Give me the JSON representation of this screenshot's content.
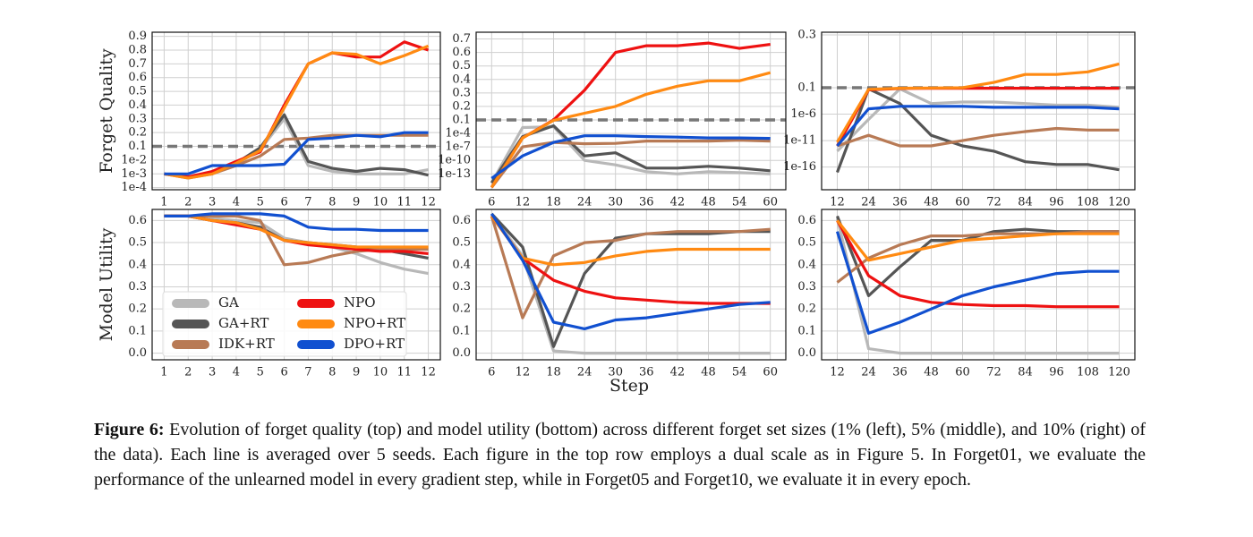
{
  "chart_data": [
    {
      "type": "line",
      "ylabel": "Forget Quality",
      "yscale": {
        "type": "dual",
        "split": 0.1,
        "linear_per_unit": 0.1,
        "decades_per_unit": 1
      },
      "x": [
        1,
        2,
        3,
        4,
        5,
        6,
        7,
        8,
        9,
        10,
        11,
        12
      ],
      "xlim": [
        0.5,
        12.5
      ],
      "xticks": [
        1,
        2,
        3,
        4,
        5,
        6,
        7,
        8,
        9,
        10,
        11,
        12
      ],
      "ylim": [
        7e-05,
        0.93
      ],
      "yticks": [
        {
          "value": 0.0001,
          "label": "1e-4"
        },
        {
          "value": 0.001,
          "label": "1e-3"
        },
        {
          "value": 0.01,
          "label": "1e-2"
        },
        0.1,
        0.2,
        0.3,
        0.4,
        0.5,
        0.6,
        0.7,
        0.8,
        0.9
      ],
      "grid": true,
      "series": [
        {
          "color": "#b8b8b8",
          "values": [
            0.001,
            0.0006,
            0.001,
            0.005,
            0.06,
            0.3,
            0.004,
            0.0015,
            0.001,
            0.001,
            0.001,
            0.002
          ]
        },
        {
          "color": "#555555",
          "values": [
            0.001,
            0.0006,
            0.001,
            0.006,
            0.08,
            0.33,
            0.008,
            0.0025,
            0.0015,
            0.0025,
            0.002,
            0.0008
          ]
        },
        {
          "color": "#b87a55",
          "values": [
            0.001,
            0.0005,
            0.001,
            0.004,
            0.02,
            0.15,
            0.16,
            0.18,
            0.18,
            0.18,
            0.18,
            0.18
          ]
        },
        {
          "color": "#ee1111",
          "values": [
            0.001,
            0.0006,
            0.0015,
            0.008,
            0.04,
            0.4,
            0.7,
            0.78,
            0.75,
            0.75,
            0.86,
            0.8
          ]
        },
        {
          "color": "#ff8a12",
          "values": [
            0.001,
            0.0005,
            0.001,
            0.006,
            0.05,
            0.38,
            0.7,
            0.78,
            0.77,
            0.7,
            0.76,
            0.83
          ]
        },
        {
          "color": "#1150d0",
          "values": [
            0.001,
            0.001,
            0.004,
            0.004,
            0.004,
            0.005,
            0.15,
            0.16,
            0.18,
            0.17,
            0.2,
            0.2
          ]
        }
      ]
    },
    {
      "type": "line",
      "yscale": {
        "type": "dual",
        "split": 0.1,
        "linear_per_unit": 0.1,
        "decades_per_unit": 3
      },
      "x": [
        6,
        12,
        18,
        24,
        30,
        36,
        42,
        48,
        54,
        60
      ],
      "xlim": [
        3,
        63
      ],
      "xticks": [
        6,
        12,
        18,
        24,
        30,
        36,
        42,
        48,
        54,
        60
      ],
      "ylim": [
        3e-17,
        0.75
      ],
      "yticks": [
        {
          "value": 1e-13,
          "label": "1e-13"
        },
        {
          "value": 1e-10,
          "label": "1e-10"
        },
        {
          "value": 1e-07,
          "label": "1e-7"
        },
        {
          "value": 0.0001,
          "label": "1e-4"
        },
        0.1,
        0.2,
        0.3,
        0.4,
        0.5,
        0.6,
        0.7
      ],
      "grid": true,
      "series": [
        {
          "color": "#b8b8b8",
          "values": [
            1e-15,
            0.002,
            0.003,
            1e-10,
            1e-11,
            3e-13,
            1e-13,
            3e-13,
            2e-13,
            1e-13
          ]
        },
        {
          "color": "#555555",
          "values": [
            1e-15,
            2e-05,
            0.005,
            1e-09,
            5e-09,
            2e-12,
            2e-12,
            5e-12,
            2e-12,
            5e-13
          ]
        },
        {
          "color": "#b87a55",
          "values": [
            1e-16,
            1e-07,
            1e-06,
            5e-07,
            6e-07,
            2e-06,
            2e-06,
            2e-06,
            3e-06,
            2e-06
          ]
        },
        {
          "color": "#ee1111",
          "values": [
            1e-16,
            1e-05,
            0.1,
            0.32,
            0.6,
            0.65,
            0.65,
            0.67,
            0.63,
            0.66
          ]
        },
        {
          "color": "#ff8a12",
          "values": [
            1e-16,
            1e-05,
            0.08,
            0.15,
            0.2,
            0.29,
            0.35,
            0.39,
            0.39,
            0.45
          ]
        },
        {
          "color": "#1150d0",
          "values": [
            1e-14,
            1e-09,
            1e-06,
            3e-05,
            3e-05,
            2e-05,
            1.5e-05,
            1e-05,
            1e-05,
            8e-06
          ]
        }
      ]
    },
    {
      "type": "line",
      "yscale": {
        "type": "dual",
        "split": 0.1,
        "linear_per_unit": 0.1,
        "decades_per_unit": 5
      },
      "x": [
        12,
        24,
        36,
        48,
        60,
        72,
        84,
        96,
        108,
        120
      ],
      "xlim": [
        6,
        126
      ],
      "xticks": [
        12,
        24,
        36,
        48,
        60,
        72,
        84,
        96,
        108,
        120
      ],
      "ylim": [
        5e-21,
        0.31
      ],
      "yticks": [
        {
          "value": 1e-16,
          "label": "1e-16"
        },
        {
          "value": 1e-11,
          "label": "1e-11"
        },
        {
          "value": 1e-06,
          "label": "1e-6"
        },
        0.1,
        0.3
      ],
      "grid": true,
      "series": [
        {
          "color": "#b8b8b8",
          "values": [
            1e-13,
            1e-07,
            0.06,
            0.0001,
            0.0002,
            0.0002,
            0.0001,
            5e-05,
            5e-05,
            2e-05
          ]
        },
        {
          "color": "#555555",
          "values": [
            1e-17,
            0.06,
            0.0001,
            1e-10,
            1e-12,
            1e-13,
            1e-15,
            3e-16,
            3e-16,
            3e-17
          ]
        },
        {
          "color": "#b87a55",
          "values": [
            1e-12,
            1e-10,
            1e-12,
            1e-12,
            1e-11,
            1e-10,
            5e-10,
            2e-09,
            1e-09,
            1e-09
          ]
        },
        {
          "color": "#ee1111",
          "values": [
            1e-12,
            0.04,
            0.07,
            0.08,
            0.08,
            0.08,
            0.08,
            0.08,
            0.08,
            0.08
          ]
        },
        {
          "color": "#ff8a12",
          "values": [
            5e-12,
            0.05,
            0.08,
            0.09,
            0.1,
            0.12,
            0.15,
            0.15,
            0.16,
            0.19
          ]
        },
        {
          "color": "#1150d0",
          "values": [
            1e-12,
            1e-05,
            3e-05,
            3e-05,
            3e-05,
            2e-05,
            2e-05,
            2e-05,
            2e-05,
            1e-05
          ]
        }
      ]
    },
    {
      "type": "line",
      "ylabel": "Model Utility",
      "x": [
        1,
        2,
        3,
        4,
        5,
        6,
        7,
        8,
        9,
        10,
        11,
        12
      ],
      "xlim": [
        0.5,
        12.5
      ],
      "xticks": [
        1,
        2,
        3,
        4,
        5,
        6,
        7,
        8,
        9,
        10,
        11,
        12
      ],
      "ylim": [
        -0.03,
        0.65
      ],
      "yticks": [
        {
          "value": 0,
          "label": "0.0"
        },
        0.1,
        0.2,
        0.3,
        0.4,
        0.5,
        0.6
      ],
      "grid": true,
      "legend": "lower-left",
      "series": [
        {
          "name": "GA",
          "color": "#b8b8b8",
          "values": [
            0.62,
            0.62,
            0.61,
            0.6,
            0.59,
            0.52,
            0.5,
            0.48,
            0.45,
            0.41,
            0.38,
            0.36
          ]
        },
        {
          "name": "GA+RT",
          "color": "#555555",
          "values": [
            0.62,
            0.62,
            0.6,
            0.59,
            0.57,
            0.51,
            0.5,
            0.49,
            0.48,
            0.47,
            0.45,
            0.43
          ]
        },
        {
          "name": "IDK+RT",
          "color": "#b87a55",
          "values": [
            0.62,
            0.62,
            0.62,
            0.62,
            0.6,
            0.4,
            0.41,
            0.44,
            0.46,
            0.47,
            0.47,
            0.47
          ]
        },
        {
          "name": "NPO",
          "color": "#ee1111",
          "values": [
            0.62,
            0.62,
            0.6,
            0.58,
            0.56,
            0.51,
            0.49,
            0.48,
            0.47,
            0.46,
            0.46,
            0.45
          ]
        },
        {
          "name": "NPO+RT",
          "color": "#ff8a12",
          "values": [
            0.62,
            0.62,
            0.6,
            0.59,
            0.56,
            0.51,
            0.5,
            0.49,
            0.48,
            0.48,
            0.48,
            0.48
          ]
        },
        {
          "name": "DPO+RT",
          "color": "#1150d0",
          "values": [
            0.62,
            0.62,
            0.63,
            0.63,
            0.63,
            0.62,
            0.57,
            0.56,
            0.56,
            0.555,
            0.555,
            0.555
          ]
        }
      ]
    },
    {
      "type": "line",
      "xlabel": "Step",
      "x": [
        6,
        12,
        18,
        24,
        30,
        36,
        42,
        48,
        54,
        60
      ],
      "xlim": [
        3,
        63
      ],
      "xticks": [
        6,
        12,
        18,
        24,
        30,
        36,
        42,
        48,
        54,
        60
      ],
      "ylim": [
        -0.03,
        0.65
      ],
      "yticks": [
        {
          "value": 0,
          "label": "0.0"
        },
        0.1,
        0.2,
        0.3,
        0.4,
        0.5,
        0.6
      ],
      "grid": true,
      "series": [
        {
          "color": "#b8b8b8",
          "values": [
            0.63,
            0.44,
            0.01,
            0,
            0,
            0,
            0,
            0,
            0,
            0
          ]
        },
        {
          "color": "#555555",
          "values": [
            0.63,
            0.48,
            0.03,
            0.36,
            0.52,
            0.54,
            0.54,
            0.54,
            0.55,
            0.55
          ]
        },
        {
          "color": "#b87a55",
          "values": [
            0.62,
            0.16,
            0.44,
            0.5,
            0.51,
            0.54,
            0.55,
            0.55,
            0.55,
            0.56
          ]
        },
        {
          "color": "#ee1111",
          "values": [
            0.62,
            0.43,
            0.33,
            0.28,
            0.25,
            0.24,
            0.23,
            0.225,
            0.225,
            0.225
          ]
        },
        {
          "color": "#ff8a12",
          "values": [
            0.62,
            0.43,
            0.4,
            0.41,
            0.44,
            0.46,
            0.47,
            0.47,
            0.47,
            0.47
          ]
        },
        {
          "color": "#1150d0",
          "values": [
            0.63,
            0.42,
            0.14,
            0.11,
            0.15,
            0.16,
            0.18,
            0.2,
            0.22,
            0.23
          ]
        }
      ]
    },
    {
      "type": "line",
      "x": [
        12,
        24,
        36,
        48,
        60,
        72,
        84,
        96,
        108,
        120
      ],
      "xlim": [
        6,
        126
      ],
      "xticks": [
        12,
        24,
        36,
        48,
        60,
        72,
        84,
        96,
        108,
        120
      ],
      "ylim": [
        -0.03,
        0.65
      ],
      "yticks": [
        {
          "value": 0,
          "label": "0.0"
        },
        0.1,
        0.2,
        0.3,
        0.4,
        0.5,
        0.6
      ],
      "grid": true,
      "series": [
        {
          "color": "#b8b8b8",
          "values": [
            0.61,
            0.02,
            0,
            0,
            0,
            0,
            0,
            0,
            0,
            0
          ]
        },
        {
          "color": "#555555",
          "values": [
            0.62,
            0.26,
            0.39,
            0.51,
            0.51,
            0.55,
            0.56,
            0.55,
            0.55,
            0.55
          ]
        },
        {
          "color": "#b87a55",
          "values": [
            0.32,
            0.43,
            0.49,
            0.53,
            0.53,
            0.54,
            0.54,
            0.54,
            0.55,
            0.55
          ]
        },
        {
          "color": "#ee1111",
          "values": [
            0.6,
            0.35,
            0.26,
            0.23,
            0.22,
            0.215,
            0.215,
            0.21,
            0.21,
            0.21
          ]
        },
        {
          "color": "#ff8a12",
          "values": [
            0.6,
            0.42,
            0.45,
            0.48,
            0.51,
            0.52,
            0.53,
            0.54,
            0.54,
            0.54
          ]
        },
        {
          "color": "#1150d0",
          "values": [
            0.55,
            0.09,
            0.14,
            0.2,
            0.26,
            0.3,
            0.33,
            0.36,
            0.37,
            0.37
          ]
        }
      ]
    }
  ],
  "caption": {
    "label": "Figure 6:",
    "text": "Evolution of forget quality (top) and model utility (bottom) across different forget set sizes (1% (left), 5% (middle), and 10% (right) of the data). Each line is averaged over 5 seeds. Each figure in the top row employs a dual scale as in Figure 5. In Forget01, we evaluate the performance of the unlearned model in every gradient step, while in Forget05 and Forget10, we evaluate it in every epoch."
  }
}
